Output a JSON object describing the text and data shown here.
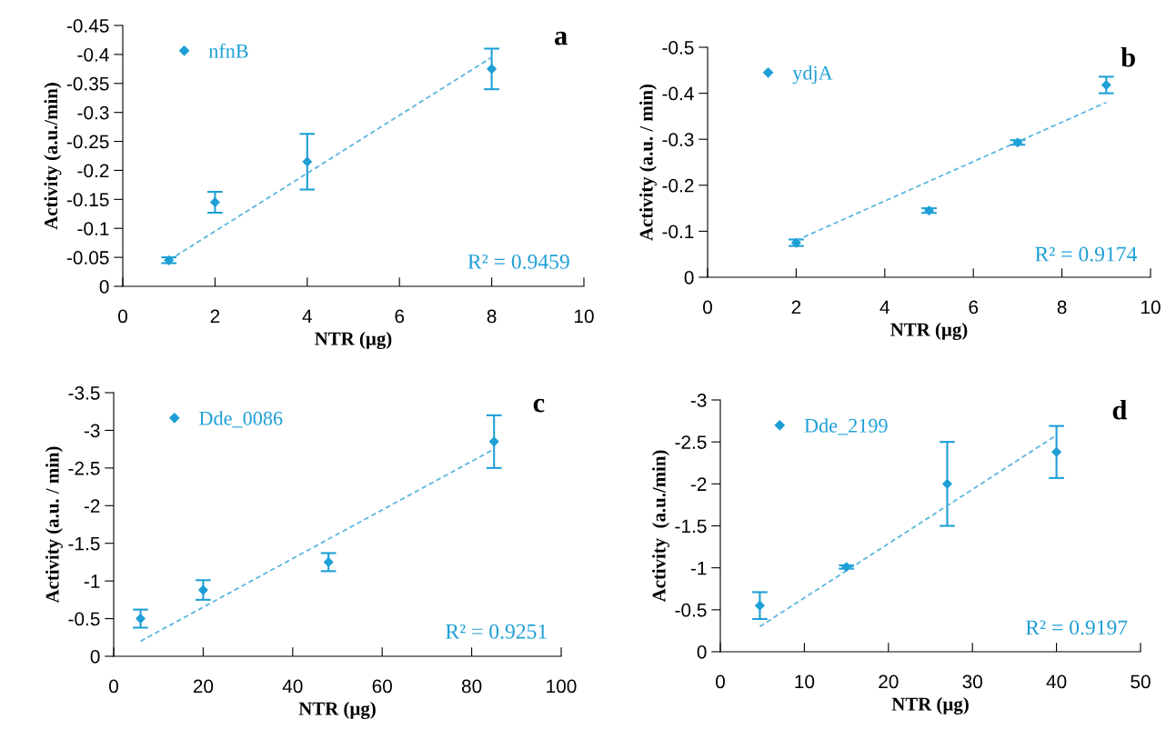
{
  "chart_data": [
    {
      "type": "scatter",
      "xlabel": "NTR (µg)",
      "ylabel": "Activity (a.u./min)",
      "xlim": [
        0,
        10
      ],
      "xticks": [
        0,
        2,
        4,
        6,
        8,
        10
      ],
      "ylim": [
        0,
        -0.45
      ],
      "yticks": [
        0,
        -0.05,
        -0.1,
        -0.15,
        -0.2,
        -0.25,
        -0.3,
        -0.35,
        -0.4,
        -0.45
      ],
      "grid": false,
      "legend": "top left",
      "marker": "diamond",
      "annotations": [
        "a",
        "R² = 0.9459"
      ],
      "series": [
        {
          "name": "nfnB",
          "color": "#1e9fd6",
          "x": [
            1,
            2,
            4,
            8
          ],
          "values": [
            -0.045,
            -0.145,
            -0.215,
            -0.375
          ],
          "errors": [
            0.005,
            0.018,
            0.048,
            0.035
          ]
        },
        {
          "type": "line",
          "color": "#5ab6df",
          "line_style": "dashed",
          "marker": "none",
          "x": [
            1,
            8
          ],
          "values": [
            -0.045,
            -0.395
          ]
        }
      ]
    },
    {
      "type": "scatter",
      "xlabel": "NTR (µg)",
      "ylabel": "Activity (a.u. / min)",
      "xlim": [
        0,
        10
      ],
      "xticks": [
        0,
        2,
        4,
        6,
        8,
        10
      ],
      "ylim": [
        0,
        -0.5
      ],
      "yticks": [
        0,
        -0.1,
        -0.2,
        -0.3,
        -0.4,
        -0.5
      ],
      "grid": false,
      "legend": "top left",
      "marker": "diamond",
      "annotations": [
        "b",
        "R² = 0.9174"
      ],
      "series": [
        {
          "name": "ydjA",
          "color": "#1e9fd6",
          "x": [
            2,
            5,
            7,
            9
          ],
          "values": [
            -0.075,
            -0.145,
            -0.293,
            -0.418
          ],
          "errors": [
            0.007,
            0.005,
            0.005,
            0.018
          ]
        },
        {
          "type": "line",
          "color": "#5ab6df",
          "line_style": "dashed",
          "marker": "none",
          "x": [
            2,
            9
          ],
          "values": [
            -0.08,
            -0.38
          ]
        }
      ]
    },
    {
      "type": "scatter",
      "xlabel": "NTR (µg)",
      "ylabel": "Activity (a.u. / min)",
      "xlim": [
        0,
        100
      ],
      "xticks": [
        0,
        20,
        40,
        60,
        80,
        100
      ],
      "ylim": [
        0,
        -3.5
      ],
      "yticks": [
        0,
        -0.5,
        -1,
        -1.5,
        -2,
        -2.5,
        -3,
        -3.5
      ],
      "grid": false,
      "legend": "top left",
      "marker": "diamond",
      "annotations": [
        "c",
        "R² = 0.9251"
      ],
      "series": [
        {
          "name": "Dde_0086",
          "color": "#1e9fd6",
          "x": [
            6,
            20,
            48,
            85
          ],
          "values": [
            -0.5,
            -0.88,
            -1.25,
            -2.85
          ],
          "errors": [
            0.12,
            0.13,
            0.12,
            0.35
          ]
        },
        {
          "type": "line",
          "color": "#5ab6df",
          "line_style": "dashed",
          "marker": "none",
          "x": [
            6,
            85
          ],
          "values": [
            -0.2,
            -2.75
          ]
        }
      ]
    },
    {
      "type": "scatter",
      "xlabel": "NTR (µg)",
      "ylabel": "Activity  (a.u./min)",
      "xlim": [
        0,
        50
      ],
      "xticks": [
        0,
        10,
        20,
        30,
        40,
        50
      ],
      "ylim": [
        0,
        -3
      ],
      "yticks": [
        0,
        -0.5,
        -1,
        -1.5,
        -2,
        -2.5,
        -3
      ],
      "grid": false,
      "legend": "top left",
      "marker": "diamond",
      "annotations": [
        "d",
        "R² = 0.9197"
      ],
      "series": [
        {
          "name": "Dde_2199",
          "color": "#1e9fd6",
          "x": [
            4.7,
            15,
            27,
            40
          ],
          "values": [
            -0.55,
            -1.01,
            -2.0,
            -2.38
          ],
          "errors": [
            0.16,
            0.02,
            0.5,
            0.31
          ]
        },
        {
          "type": "line",
          "color": "#5ab6df",
          "line_style": "dashed",
          "marker": "none",
          "x": [
            4.7,
            40
          ],
          "values": [
            -0.3,
            -2.58
          ]
        }
      ]
    }
  ]
}
